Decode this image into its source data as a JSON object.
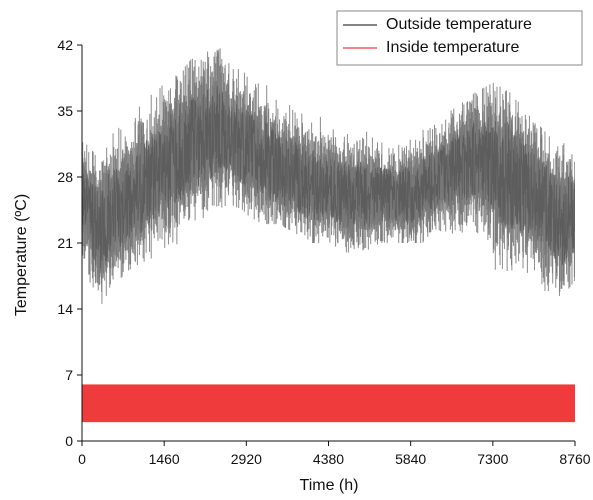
{
  "chart_data": {
    "type": "line",
    "title": "",
    "xlabel": "Time (h)",
    "ylabel": "Temperature (ºC)",
    "xlim": [
      0,
      8760
    ],
    "ylim": [
      0,
      42
    ],
    "x_ticks": [
      "0",
      "1460",
      "2920",
      "4380",
      "5840",
      "7300",
      "8760"
    ],
    "y_ticks": [
      "0",
      "7",
      "14",
      "21",
      "28",
      "35",
      "42"
    ],
    "grid": false,
    "legend_position": "top-right",
    "series": [
      {
        "name": "Outside temperature",
        "color": "#5a5a5a",
        "style": "dense hourly oscillating line",
        "x": [
          0,
          150,
          300,
          500,
          800,
          1100,
          1460,
          1800,
          2100,
          2400,
          2700,
          2920,
          3200,
          3500,
          3800,
          4100,
          4380,
          4700,
          5000,
          5300,
          5600,
          5840,
          6100,
          6400,
          6700,
          7000,
          7300,
          7600,
          7900,
          8200,
          8500,
          8760
        ],
        "lower": [
          20,
          16,
          14,
          16,
          18,
          19,
          20,
          21,
          23,
          24,
          25,
          24,
          23,
          23,
          22,
          21,
          21,
          20,
          20,
          21,
          21,
          21,
          21,
          22,
          22,
          22,
          18,
          17,
          17,
          16,
          15,
          17
        ],
        "upper": [
          32,
          31,
          30,
          33,
          34,
          36,
          38,
          40,
          41,
          42,
          40,
          39,
          38,
          37,
          36,
          35,
          34,
          33,
          33,
          32,
          32,
          33,
          33,
          34,
          36,
          37,
          38,
          37,
          35,
          33,
          31,
          34
        ],
        "mean": [
          26,
          24,
          22,
          24,
          25,
          27,
          29,
          31,
          32,
          33,
          32,
          31,
          30,
          29,
          28,
          27,
          27,
          26,
          26,
          26,
          26,
          26,
          27,
          28,
          29,
          30,
          29,
          28,
          27,
          25,
          23,
          24
        ]
      },
      {
        "name": "Inside temperature",
        "color": "#ef3b3b",
        "style": "dense hourly band",
        "x": [
          0,
          8760
        ],
        "lower": [
          2,
          2
        ],
        "upper": [
          6,
          6
        ]
      }
    ]
  }
}
